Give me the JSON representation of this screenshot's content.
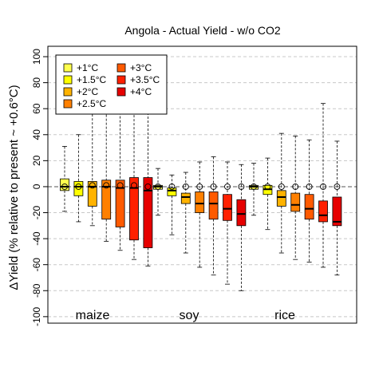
{
  "chart_data": {
    "type": "box",
    "title": "Angola - Actual Yield - w/o CO2",
    "ylabel": "ΔYield (% relative to present ~ +0.6°C)",
    "ylim": [
      -105,
      108
    ],
    "yticks": [
      -100,
      -80,
      -60,
      -40,
      -20,
      0,
      20,
      40,
      60,
      80,
      100
    ],
    "grid": "horizontal dashed",
    "legend_position": "top-left",
    "legend": [
      {
        "label": "+1°C",
        "color": "#FFFF4D"
      },
      {
        "label": "+1.5°C",
        "color": "#FFFF00"
      },
      {
        "label": "+2°C",
        "color": "#FFB300"
      },
      {
        "label": "+2.5°C",
        "color": "#FF8000"
      },
      {
        "label": "+3°C",
        "color": "#FF5A00"
      },
      {
        "label": "+3.5°C",
        "color": "#FF2000"
      },
      {
        "label": "+4°C",
        "color": "#E60000"
      }
    ],
    "groups": [
      {
        "crop": "maize",
        "boxes": [
          {
            "level": "+1°C",
            "min": -19,
            "q1": -3,
            "median": 0,
            "q3": 6,
            "max": 31,
            "mean": 0
          },
          {
            "level": "+1.5°C",
            "min": -27,
            "q1": -7,
            "median": 0,
            "q3": 4,
            "max": 40,
            "mean": 0
          },
          {
            "level": "+2°C",
            "min": -30,
            "q1": -15,
            "median": 0,
            "q3": 4,
            "max": 68,
            "mean": 1
          },
          {
            "level": "+2.5°C",
            "min": -42,
            "q1": -25,
            "median": 0,
            "q3": 5,
            "max": 80,
            "mean": 1
          },
          {
            "level": "+3°C",
            "min": -49,
            "q1": -31,
            "median": -1,
            "q3": 5,
            "max": 88,
            "mean": 1
          },
          {
            "level": "+3.5°C",
            "min": -56,
            "q1": -41,
            "median": -1,
            "q3": 7,
            "max": 95,
            "mean": 1
          },
          {
            "level": "+4°C",
            "min": -61,
            "q1": -47,
            "median": -3,
            "q3": 7,
            "max": 100,
            "mean": 0
          }
        ]
      },
      {
        "crop": "soy",
        "boxes": [
          {
            "level": "+1°C",
            "min": -22,
            "q1": -2,
            "median": 0,
            "q3": 1,
            "max": 14,
            "mean": 0
          },
          {
            "level": "+1.5°C",
            "min": -37,
            "q1": -7,
            "median": -3,
            "q3": -1,
            "max": 9,
            "mean": 0
          },
          {
            "level": "+2°C",
            "min": -51,
            "q1": -13,
            "median": -8,
            "q3": -5,
            "max": 11,
            "mean": 0
          },
          {
            "level": "+2.5°C",
            "min": -62,
            "q1": -20,
            "median": -13,
            "q3": -4,
            "max": 19,
            "mean": 0
          },
          {
            "level": "+3°C",
            "min": -68,
            "q1": -25,
            "median": -13,
            "q3": -4,
            "max": 23,
            "mean": 0
          },
          {
            "level": "+3.5°C",
            "min": -75,
            "q1": -26,
            "median": -17,
            "q3": -6,
            "max": 19,
            "mean": 0
          },
          {
            "level": "+4°C",
            "min": -80,
            "q1": -30,
            "median": -21,
            "q3": -10,
            "max": 17,
            "mean": 0
          }
        ]
      },
      {
        "crop": "rice",
        "boxes": [
          {
            "level": "+1°C",
            "min": -22,
            "q1": -2,
            "median": 0,
            "q3": 1,
            "max": 18,
            "mean": 0
          },
          {
            "level": "+1.5°C",
            "min": -33,
            "q1": -6,
            "median": -2,
            "q3": 1,
            "max": 22,
            "mean": 0
          },
          {
            "level": "+2°C",
            "min": -51,
            "q1": -15,
            "median": -8,
            "q3": -3,
            "max": 41,
            "mean": 0
          },
          {
            "level": "+2.5°C",
            "min": -56,
            "q1": -19,
            "median": -14,
            "q3": -5,
            "max": 39,
            "mean": 0
          },
          {
            "level": "+3°C",
            "min": -58,
            "q1": -25,
            "median": -17,
            "q3": -6,
            "max": 36,
            "mean": 0
          },
          {
            "level": "+3.5°C",
            "min": -62,
            "q1": -27,
            "median": -22,
            "q3": -11,
            "max": 64,
            "mean": 0
          },
          {
            "level": "+4°C",
            "min": -68,
            "q1": -30,
            "median": -27,
            "q3": -8,
            "max": 35,
            "mean": 0
          }
        ]
      }
    ]
  }
}
